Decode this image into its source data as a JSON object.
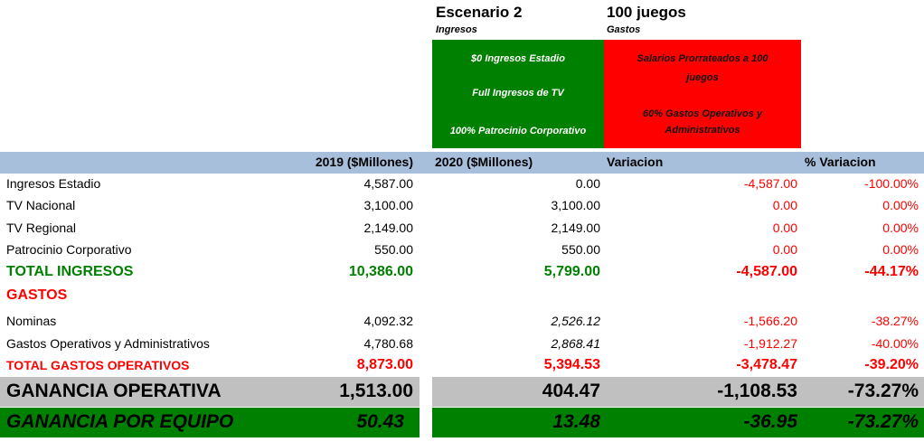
{
  "scenario": {
    "title": "Escenario 2",
    "ingresos_label": "Ingresos",
    "games_title": "100 juegos",
    "gastos_label": "Gastos",
    "green_lines": [
      "$0 Ingresos Estadio",
      "Full Ingresos de TV",
      "100% Patrocinio Corporativo"
    ],
    "red_lines": [
      "Salarios Prorrateados a 100",
      "juegos",
      "60% Gastos Operativos y",
      "Administrativos"
    ],
    "green_color": "#008000",
    "red_color": "#ff0000"
  },
  "columns": {
    "c2019": "2019 ($Millones)",
    "c2020": "2020 ($Millones)",
    "variacion": "Variacion",
    "pct": "% Variacion"
  },
  "rows": [
    {
      "label": "Ingresos Estadio",
      "v2019": "4,587.00",
      "v2020": "0.00",
      "var": "-4,587.00",
      "pct": "-100.00%"
    },
    {
      "label": "TV Nacional",
      "v2019": "3,100.00",
      "v2020": "3,100.00",
      "var": "0.00",
      "pct": "0.00%"
    },
    {
      "label": "TV Regional",
      "v2019": "2,149.00",
      "v2020": "2,149.00",
      "var": "0.00",
      "pct": "0.00%"
    },
    {
      "label": "Patrocinio Corporativo",
      "v2019": "550.00",
      "v2020": "550.00",
      "var": "0.00",
      "pct": "0.00%"
    },
    {
      "label": "TOTAL INGRESOS",
      "v2019": "10,386.00",
      "v2020": "5,799.00",
      "var": "-4,587.00",
      "pct": "-44.17%"
    },
    {
      "label": "GASTOS"
    },
    {
      "label": "Nominas",
      "v2019": "4,092.32",
      "v2020": "2,526.12",
      "var": "-1,566.20",
      "pct": "-38.27%"
    },
    {
      "label": "Gastos Operativos y Administrativos",
      "v2019": "4,780.68",
      "v2020": "2,868.41",
      "var": "-1,912.27",
      "pct": "-40.00%"
    },
    {
      "label": "TOTAL GASTOS OPERATIVOS",
      "v2019": "8,873.00",
      "v2020": "5,394.53",
      "var": "-3,478.47",
      "pct": "-39.20%"
    }
  ],
  "ganancia_operativa": {
    "label": "GANANCIA OPERATIVA",
    "v2019": "1,513.00",
    "v2020": "404.47",
    "var": "-1,108.53",
    "pct": "-73.27%"
  },
  "ganancia_equipo": {
    "label": "GANANCIA POR EQUIPO",
    "v2019": "50.43",
    "v2020": "13.48",
    "var": "-36.95",
    "pct": "-73.27%"
  }
}
